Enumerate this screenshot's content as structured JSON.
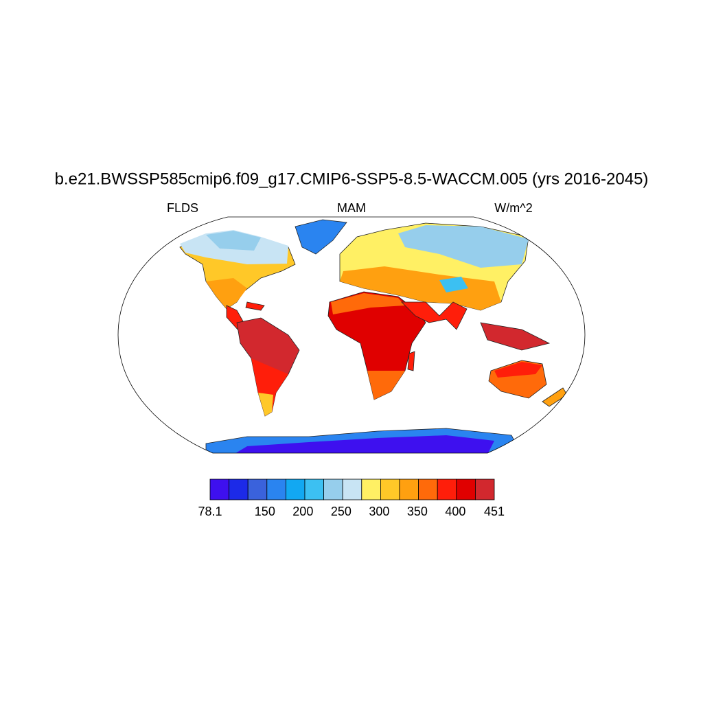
{
  "title": "b.e21.BWSSP585cmip6.f09_g17.CMIP6-SSP5-8.5-WACCM.005 (yrs 2016-2045)",
  "left_label": "FLDS",
  "center_label": "MAM",
  "right_label": "W/m^2",
  "colorbar": {
    "colors": [
      "#3e10ef",
      "#1c2ae8",
      "#3a62dc",
      "#2a84f0",
      "#12a8f2",
      "#3cc0f2",
      "#96ceec",
      "#c8e4f4",
      "#fff064",
      "#ffc828",
      "#ffa010",
      "#ff6a0a",
      "#ff1e0a",
      "#e00000",
      "#d2282e"
    ],
    "range": [
      78.1,
      451
    ],
    "ticks": [
      78.1,
      150,
      200,
      250,
      300,
      350,
      400,
      451
    ]
  }
}
